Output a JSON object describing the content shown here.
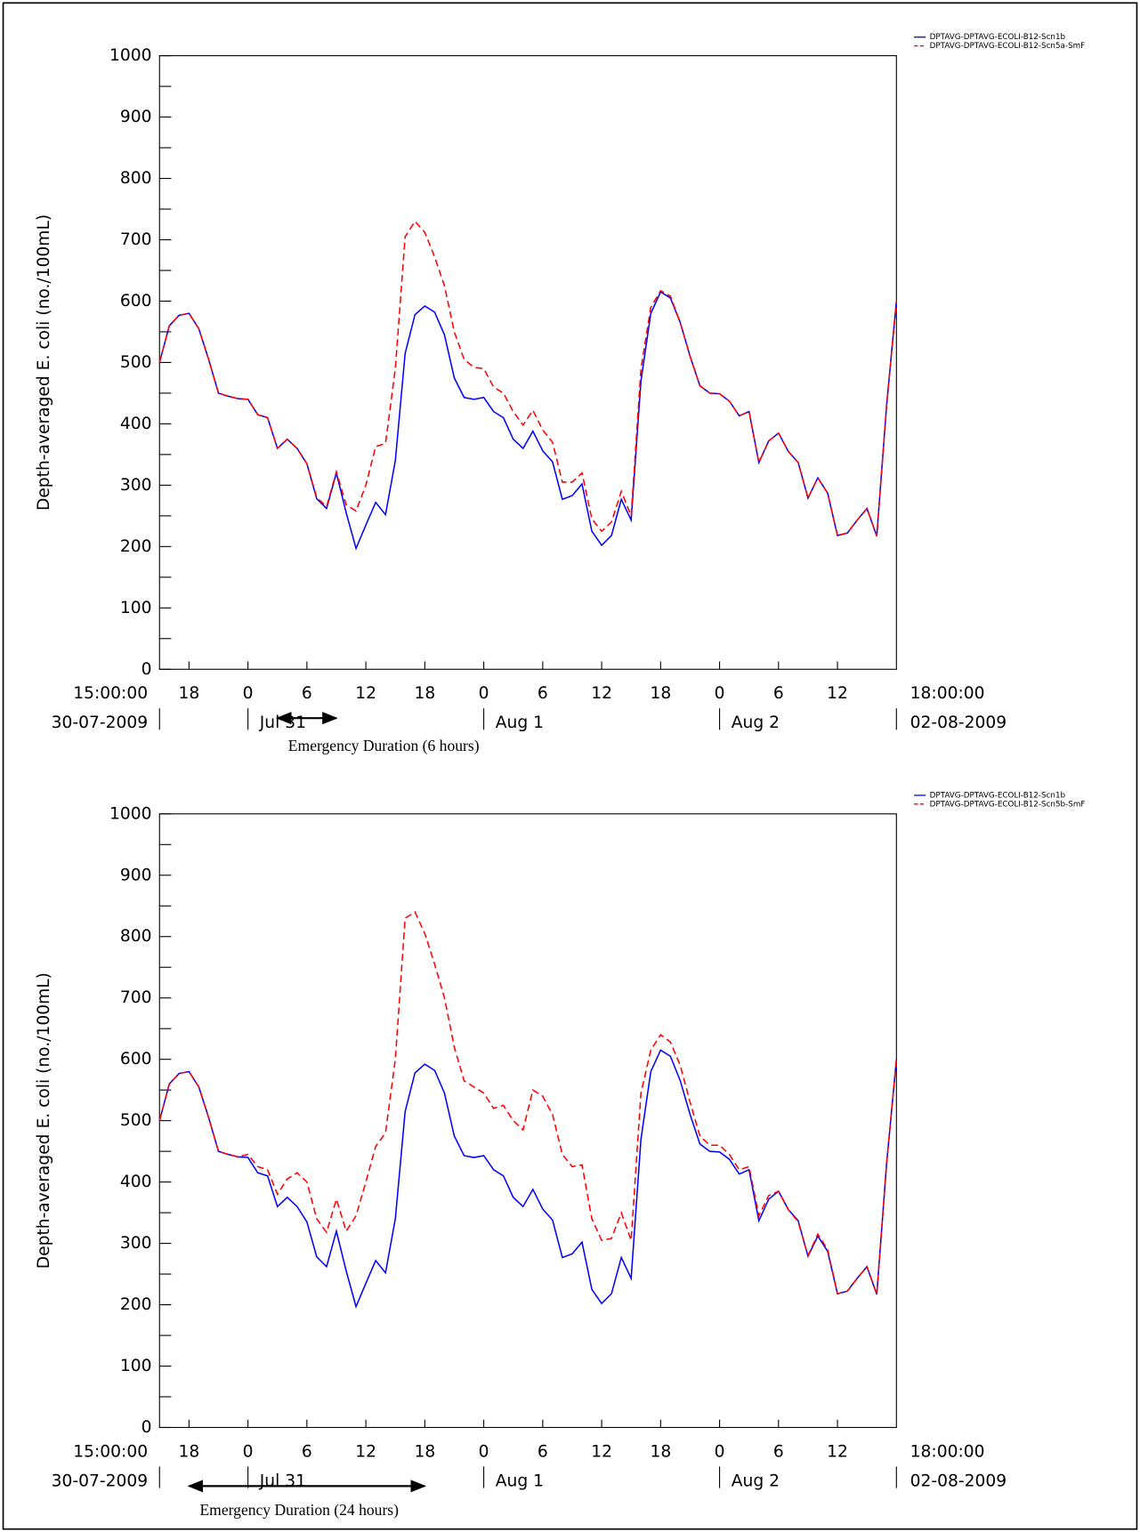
{
  "chart_data": [
    {
      "type": "line",
      "y_label": "Depth-averaged E. coli (no./100mL)",
      "x": [
        0,
        1,
        2,
        3,
        4,
        5,
        6,
        7,
        8,
        9,
        10,
        11,
        12,
        13,
        14,
        15,
        16,
        17,
        18,
        19,
        20,
        21,
        22,
        23,
        24,
        25,
        26,
        27,
        28,
        29,
        30,
        31,
        32,
        33,
        34,
        35,
        36,
        37,
        38,
        39,
        40,
        41,
        42,
        43,
        44,
        45,
        46,
        47,
        48,
        49,
        50,
        51,
        52,
        53,
        54,
        55,
        56,
        57,
        58,
        59,
        60,
        61,
        62,
        63,
        64,
        65,
        66,
        67,
        68,
        69,
        70,
        71,
        72,
        73,
        74,
        75
      ],
      "xlim": [
        0,
        75
      ],
      "xticks": [
        {
          "value": 3,
          "label": "18"
        },
        {
          "value": 9,
          "label": "0"
        },
        {
          "value": 15,
          "label": "6"
        },
        {
          "value": 21,
          "label": "12"
        },
        {
          "value": 27,
          "label": "18"
        },
        {
          "value": 33,
          "label": "0"
        },
        {
          "value": 39,
          "label": "6"
        },
        {
          "value": 45,
          "label": "12"
        },
        {
          "value": 51,
          "label": "18"
        },
        {
          "value": 57,
          "label": "0"
        },
        {
          "value": 63,
          "label": "6"
        },
        {
          "value": 69,
          "label": "12"
        }
      ],
      "date_ticks": [
        {
          "value": 9,
          "label": "Jul 31"
        },
        {
          "value": 33,
          "label": "Aug 1"
        },
        {
          "value": 57,
          "label": "Aug 2"
        }
      ],
      "x_start_label": {
        "time": "15:00:00",
        "date": "30-07-2009"
      },
      "x_end_label": {
        "time": "18:00:00",
        "date": "02-08-2009"
      },
      "ylim": [
        0,
        1000
      ],
      "yticks": [
        0,
        100,
        200,
        300,
        400,
        500,
        600,
        700,
        800,
        900,
        1000
      ],
      "yminorticks": [
        50,
        150,
        250,
        350,
        450,
        550,
        650,
        750,
        850,
        950
      ],
      "legend": "top-right",
      "series": [
        {
          "name": "DPTAVG-DPTAVG-ECOLI-B12-Scn1b",
          "color": "#0000ff",
          "linestyle": "solid",
          "values": [
            500,
            560,
            577,
            580,
            555,
            505,
            450,
            445,
            441,
            440,
            415,
            410,
            360,
            375,
            360,
            335,
            278,
            262,
            320,
            255,
            197,
            235,
            272,
            252,
            340,
            515,
            578,
            592,
            582,
            545,
            475,
            443,
            440,
            443,
            420,
            410,
            375,
            360,
            388,
            356,
            338,
            277,
            283,
            302,
            225,
            202,
            218,
            277,
            243,
            470,
            580,
            615,
            605,
            565,
            510,
            462,
            450,
            449,
            437,
            413,
            420,
            337,
            372,
            385,
            355,
            337,
            279,
            312,
            287,
            218,
            222,
            243,
            262,
            217,
            430,
            600
          ]
        },
        {
          "name": "DPTAVG-DPTAVG-ECOLI-B12-Scn5a-SmF",
          "color": "#ff0000",
          "linestyle": "dashed",
          "values": [
            500,
            560,
            577,
            580,
            555,
            505,
            450,
            445,
            441,
            440,
            415,
            410,
            360,
            375,
            360,
            335,
            280,
            265,
            322,
            268,
            258,
            300,
            363,
            368,
            490,
            705,
            730,
            712,
            672,
            625,
            550,
            505,
            492,
            490,
            460,
            450,
            420,
            398,
            422,
            390,
            370,
            305,
            305,
            320,
            245,
            225,
            240,
            290,
            250,
            490,
            590,
            617,
            608,
            565,
            510,
            462,
            450,
            449,
            437,
            413,
            420,
            337,
            372,
            385,
            355,
            337,
            279,
            312,
            287,
            218,
            222,
            243,
            262,
            217,
            430,
            600
          ]
        }
      ],
      "annotation": {
        "label": "Emergency Duration (6 hours)",
        "start": 12,
        "end": 18
      }
    },
    {
      "type": "line",
      "y_label": "Depth-averaged E. coli (no./100mL)",
      "x": [
        0,
        1,
        2,
        3,
        4,
        5,
        6,
        7,
        8,
        9,
        10,
        11,
        12,
        13,
        14,
        15,
        16,
        17,
        18,
        19,
        20,
        21,
        22,
        23,
        24,
        25,
        26,
        27,
        28,
        29,
        30,
        31,
        32,
        33,
        34,
        35,
        36,
        37,
        38,
        39,
        40,
        41,
        42,
        43,
        44,
        45,
        46,
        47,
        48,
        49,
        50,
        51,
        52,
        53,
        54,
        55,
        56,
        57,
        58,
        59,
        60,
        61,
        62,
        63,
        64,
        65,
        66,
        67,
        68,
        69,
        70,
        71,
        72,
        73,
        74,
        75
      ],
      "xlim": [
        0,
        75
      ],
      "xticks": [
        {
          "value": 3,
          "label": "18"
        },
        {
          "value": 9,
          "label": "0"
        },
        {
          "value": 15,
          "label": "6"
        },
        {
          "value": 21,
          "label": "12"
        },
        {
          "value": 27,
          "label": "18"
        },
        {
          "value": 33,
          "label": "0"
        },
        {
          "value": 39,
          "label": "6"
        },
        {
          "value": 45,
          "label": "12"
        },
        {
          "value": 51,
          "label": "18"
        },
        {
          "value": 57,
          "label": "0"
        },
        {
          "value": 63,
          "label": "6"
        },
        {
          "value": 69,
          "label": "12"
        }
      ],
      "date_ticks": [
        {
          "value": 9,
          "label": "Jul 31"
        },
        {
          "value": 33,
          "label": "Aug 1"
        },
        {
          "value": 57,
          "label": "Aug 2"
        }
      ],
      "x_start_label": {
        "time": "15:00:00",
        "date": "30-07-2009"
      },
      "x_end_label": {
        "time": "18:00:00",
        "date": "02-08-2009"
      },
      "ylim": [
        0,
        1000
      ],
      "yticks": [
        0,
        100,
        200,
        300,
        400,
        500,
        600,
        700,
        800,
        900,
        1000
      ],
      "yminorticks": [
        50,
        150,
        250,
        350,
        450,
        550,
        650,
        750,
        850,
        950
      ],
      "legend": "top-right",
      "series": [
        {
          "name": "DPTAVG-DPTAVG-ECOLI-B12-Scn1b",
          "color": "#0000ff",
          "linestyle": "solid",
          "values": [
            500,
            560,
            577,
            580,
            555,
            505,
            450,
            445,
            441,
            440,
            415,
            410,
            360,
            375,
            360,
            335,
            278,
            262,
            320,
            255,
            197,
            235,
            272,
            252,
            340,
            515,
            578,
            592,
            582,
            545,
            475,
            443,
            440,
            443,
            420,
            410,
            375,
            360,
            388,
            356,
            338,
            277,
            283,
            302,
            225,
            202,
            218,
            277,
            243,
            470,
            580,
            615,
            605,
            565,
            510,
            462,
            450,
            449,
            437,
            413,
            420,
            337,
            372,
            385,
            355,
            337,
            279,
            312,
            287,
            218,
            222,
            243,
            262,
            217,
            430,
            600
          ]
        },
        {
          "name": "DPTAVG-DPTAVG-ECOLI-B12-Scn5b-SmF",
          "color": "#ff0000",
          "linestyle": "dashed",
          "values": [
            500,
            560,
            577,
            580,
            555,
            505,
            450,
            445,
            441,
            445,
            425,
            420,
            380,
            405,
            415,
            400,
            340,
            318,
            372,
            320,
            345,
            400,
            458,
            480,
            600,
            830,
            840,
            805,
            755,
            700,
            620,
            565,
            555,
            545,
            520,
            525,
            500,
            485,
            550,
            540,
            510,
            445,
            425,
            428,
            340,
            305,
            308,
            350,
            305,
            545,
            615,
            640,
            628,
            590,
            530,
            475,
            460,
            460,
            445,
            420,
            425,
            345,
            378,
            385,
            355,
            335,
            280,
            315,
            290,
            218,
            222,
            243,
            262,
            217,
            430,
            600
          ]
        }
      ],
      "annotation": {
        "label": "Emergency Duration (24 hours)",
        "start": 3,
        "end": 27
      }
    }
  ]
}
